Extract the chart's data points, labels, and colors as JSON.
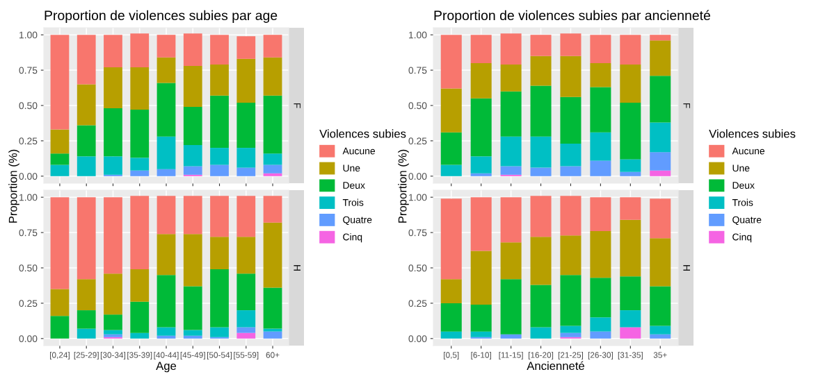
{
  "chart_data": [
    {
      "type": "bar",
      "title": "Proportion de violences subies par age",
      "ylabel": "Proportion (%)",
      "legend_title": "Violences subies",
      "legend": "right",
      "stacked": true,
      "grid": true,
      "tick_labels": "y",
      "annotations": [
        "F"
      ],
      "categories": [
        null,
        null,
        null,
        null,
        null,
        null,
        null,
        null,
        null
      ],
      "ylim": [
        -0.05,
        1.05
      ],
      "yticks": [
        {
          "value": 0,
          "label": "0.00"
        },
        {
          "value": 0.25,
          "label": "0.25"
        },
        {
          "value": 0.5,
          "label": "0.50"
        },
        {
          "value": 0.75,
          "label": "0.75"
        },
        {
          "value": 1,
          "label": "1.00"
        }
      ],
      "series": [
        {
          "name": "Cinq",
          "color": "#f564e3",
          "values": [
            0,
            0,
            0,
            0,
            0,
            0.01,
            0,
            0,
            0.02
          ]
        },
        {
          "name": "Quatre",
          "color": "#619cff",
          "values": [
            0,
            0,
            0.01,
            0.04,
            0.05,
            0.06,
            0.08,
            0.06,
            0.06
          ]
        },
        {
          "name": "Trois",
          "color": "#00bfc4",
          "values": [
            0.08,
            0.14,
            0.13,
            0.09,
            0.23,
            0.15,
            0.12,
            0.14,
            0.08
          ]
        },
        {
          "name": "Deux",
          "color": "#00ba38",
          "values": [
            0.08,
            0.22,
            0.34,
            0.34,
            0.38,
            0.27,
            0.37,
            0.32,
            0.41
          ]
        },
        {
          "name": "Une",
          "color": "#b79f00",
          "values": [
            0.17,
            0.29,
            0.29,
            0.3,
            0.18,
            0.29,
            0.22,
            0.31,
            0.27
          ]
        },
        {
          "name": "Aucune",
          "color": "#f8766d",
          "values": [
            0.67,
            0.35,
            0.23,
            0.24,
            0.16,
            0.23,
            0.21,
            0.16,
            0.16
          ]
        }
      ]
    },
    {
      "type": "bar",
      "xlabel": "Age",
      "stacked": true,
      "grid": true,
      "annotations": [
        "H"
      ],
      "categories": [
        "[0,24]",
        "[25-29]",
        "[30-34]",
        "[35-39]",
        "[40-44]",
        "[45-49]",
        "[50-54]",
        "[55-59]",
        "60+"
      ],
      "ylim": [
        -0.05,
        1.05
      ],
      "yticks": [
        {
          "value": 0,
          "label": "0.00"
        },
        {
          "value": 0.25,
          "label": "0.25"
        },
        {
          "value": 0.5,
          "label": "0.50"
        },
        {
          "value": 0.75,
          "label": "0.75"
        },
        {
          "value": 1,
          "label": "1.00"
        }
      ],
      "series": [
        {
          "color": "#f564e3",
          "values": [
            0,
            0,
            0.01,
            0,
            0,
            0,
            0,
            0.04,
            0
          ]
        },
        {
          "color": "#619cff",
          "values": [
            0,
            0,
            0.02,
            0,
            0.02,
            0.02,
            0.01,
            0.04,
            0.05
          ]
        },
        {
          "color": "#00bfc4",
          "values": [
            0,
            0.07,
            0.03,
            0.04,
            0.06,
            0.04,
            0.07,
            0.12,
            0.02
          ]
        },
        {
          "color": "#00ba38",
          "values": [
            0.16,
            0.13,
            0.11,
            0.22,
            0.37,
            0.31,
            0.41,
            0.26,
            0.29
          ]
        },
        {
          "color": "#b79f00",
          "values": [
            0.19,
            0.22,
            0.29,
            0.23,
            0.29,
            0.37,
            0.23,
            0.26,
            0.46
          ]
        },
        {
          "color": "#f8766d",
          "values": [
            0.65,
            0.58,
            0.54,
            0.52,
            0.27,
            0.27,
            0.29,
            0.29,
            0.19
          ]
        }
      ]
    },
    {
      "type": "bar",
      "title": "Proportion de violences subies par ancienneté",
      "ylabel": "Proportion (%)",
      "legend_title": "Violences subies",
      "legend": "right",
      "stacked": true,
      "grid": true,
      "tick_labels": "y",
      "annotations": [
        "F"
      ],
      "categories": [
        null,
        null,
        null,
        null,
        null,
        null,
        null,
        null
      ],
      "ylim": [
        -0.05,
        1.05
      ],
      "yticks": [
        {
          "value": 0,
          "label": "0.00"
        },
        {
          "value": 0.25,
          "label": "0.25"
        },
        {
          "value": 0.5,
          "label": "0.50"
        },
        {
          "value": 0.75,
          "label": "0.75"
        },
        {
          "value": 1,
          "label": "1.00"
        }
      ],
      "series": [
        {
          "name": "Cinq",
          "color": "#f564e3",
          "values": [
            0,
            0,
            0.01,
            0,
            0,
            0,
            0,
            0.04
          ]
        },
        {
          "name": "Quatre",
          "color": "#619cff",
          "values": [
            0,
            0.02,
            0.06,
            0.06,
            0.07,
            0.11,
            0.03,
            0.13
          ]
        },
        {
          "name": "Trois",
          "color": "#00bfc4",
          "values": [
            0.08,
            0.12,
            0.21,
            0.22,
            0.16,
            0.2,
            0.09,
            0.21
          ]
        },
        {
          "name": "Deux",
          "color": "#00ba38",
          "values": [
            0.23,
            0.41,
            0.32,
            0.36,
            0.33,
            0.32,
            0.4,
            0.33
          ]
        },
        {
          "name": "Une",
          "color": "#b79f00",
          "values": [
            0.31,
            0.25,
            0.19,
            0.21,
            0.29,
            0.17,
            0.27,
            0.25
          ]
        },
        {
          "name": "Aucune",
          "color": "#f8766d",
          "values": [
            0.38,
            0.2,
            0.22,
            0.15,
            0.16,
            0.2,
            0.21,
            0.04
          ]
        }
      ]
    },
    {
      "type": "bar",
      "xlabel": "Ancienneté",
      "stacked": true,
      "grid": true,
      "annotations": [
        "H"
      ],
      "categories": [
        "[0,5]",
        "[6-10]",
        "[11-15]",
        "[16-20]",
        "[21-25]",
        "[26-30]",
        "[31-35]",
        "35+"
      ],
      "ylim": [
        -0.05,
        1.05
      ],
      "yticks": [
        {
          "value": 0,
          "label": "0.00"
        },
        {
          "value": 0.25,
          "label": "0.25"
        },
        {
          "value": 0.5,
          "label": "0.50"
        },
        {
          "value": 0.75,
          "label": "0.75"
        },
        {
          "value": 1,
          "label": "1.00"
        }
      ],
      "series": [
        {
          "color": "#f564e3",
          "values": [
            0,
            0,
            0,
            0,
            0.01,
            0,
            0.08,
            0
          ]
        },
        {
          "color": "#619cff",
          "values": [
            0,
            0.01,
            0.03,
            0,
            0.03,
            0.05,
            0,
            0.03
          ]
        },
        {
          "color": "#00bfc4",
          "values": [
            0.05,
            0.04,
            0,
            0.08,
            0.05,
            0.1,
            0.12,
            0.06
          ]
        },
        {
          "color": "#00ba38",
          "values": [
            0.2,
            0.19,
            0.39,
            0.3,
            0.36,
            0.28,
            0.24,
            0.28
          ]
        },
        {
          "color": "#b79f00",
          "values": [
            0.17,
            0.38,
            0.26,
            0.34,
            0.28,
            0.33,
            0.4,
            0.34
          ]
        },
        {
          "color": "#f8766d",
          "values": [
            0.57,
            0.38,
            0.32,
            0.29,
            0.28,
            0.24,
            0.16,
            0.28
          ]
        }
      ]
    }
  ]
}
